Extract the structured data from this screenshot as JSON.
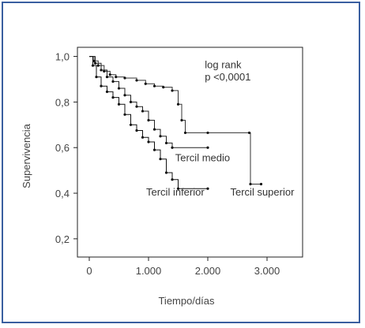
{
  "chart_data": {
    "type": "line",
    "chart_subtype": "kaplan-meier",
    "title": "",
    "xlabel": "Tiempo/días",
    "ylabel": "Supervivencia",
    "xlim": [
      -200,
      3600
    ],
    "ylim": [
      0.12,
      1.04
    ],
    "x_ticks": [
      0,
      1000,
      2000,
      3000
    ],
    "x_tick_labels": [
      "0",
      "1.000",
      "2.000",
      "3.000"
    ],
    "y_ticks": [
      0.2,
      0.4,
      0.6,
      0.8,
      1.0
    ],
    "y_tick_labels": [
      "0,2",
      "0,4",
      "0,6",
      "0,8",
      "1,0"
    ],
    "grid": false,
    "annotations": [
      {
        "text": "log rank",
        "x": 1950,
        "y": 0.948
      },
      {
        "text": "p <0,0001",
        "x": 1950,
        "y": 0.895
      }
    ],
    "series": [
      {
        "name": "Tercil superior",
        "label_x": 2380,
        "label_y": 0.39,
        "points": [
          [
            0,
            1.0
          ],
          [
            80,
            0.98
          ],
          [
            150,
            0.96
          ],
          [
            250,
            0.935
          ],
          [
            350,
            0.92
          ],
          [
            450,
            0.91
          ],
          [
            600,
            0.905
          ],
          [
            800,
            0.895
          ],
          [
            950,
            0.88
          ],
          [
            1100,
            0.87
          ],
          [
            1250,
            0.865
          ],
          [
            1400,
            0.85
          ],
          [
            1500,
            0.79
          ],
          [
            1560,
            0.72
          ],
          [
            1620,
            0.665
          ],
          [
            2000,
            0.665
          ],
          [
            2700,
            0.665
          ],
          [
            2720,
            0.44
          ],
          [
            2900,
            0.44
          ]
        ]
      },
      {
        "name": "Tercil medio",
        "label_x": 1450,
        "label_y": 0.54,
        "points": [
          [
            0,
            1.0
          ],
          [
            100,
            0.97
          ],
          [
            200,
            0.94
          ],
          [
            300,
            0.91
          ],
          [
            400,
            0.89
          ],
          [
            500,
            0.86
          ],
          [
            600,
            0.83
          ],
          [
            700,
            0.8
          ],
          [
            800,
            0.78
          ],
          [
            900,
            0.76
          ],
          [
            1000,
            0.72
          ],
          [
            1100,
            0.68
          ],
          [
            1200,
            0.65
          ],
          [
            1300,
            0.62
          ],
          [
            1400,
            0.6
          ],
          [
            2000,
            0.6
          ]
        ]
      },
      {
        "name": "Tercil inferior",
        "label_x": 960,
        "label_y": 0.39,
        "points": [
          [
            0,
            1.0
          ],
          [
            60,
            0.96
          ],
          [
            120,
            0.91
          ],
          [
            200,
            0.87
          ],
          [
            300,
            0.845
          ],
          [
            400,
            0.82
          ],
          [
            500,
            0.79
          ],
          [
            600,
            0.745
          ],
          [
            700,
            0.7
          ],
          [
            800,
            0.675
          ],
          [
            900,
            0.645
          ],
          [
            1000,
            0.625
          ],
          [
            1100,
            0.59
          ],
          [
            1200,
            0.55
          ],
          [
            1300,
            0.49
          ],
          [
            1400,
            0.46
          ],
          [
            1500,
            0.42
          ],
          [
            2000,
            0.42
          ]
        ]
      }
    ]
  }
}
